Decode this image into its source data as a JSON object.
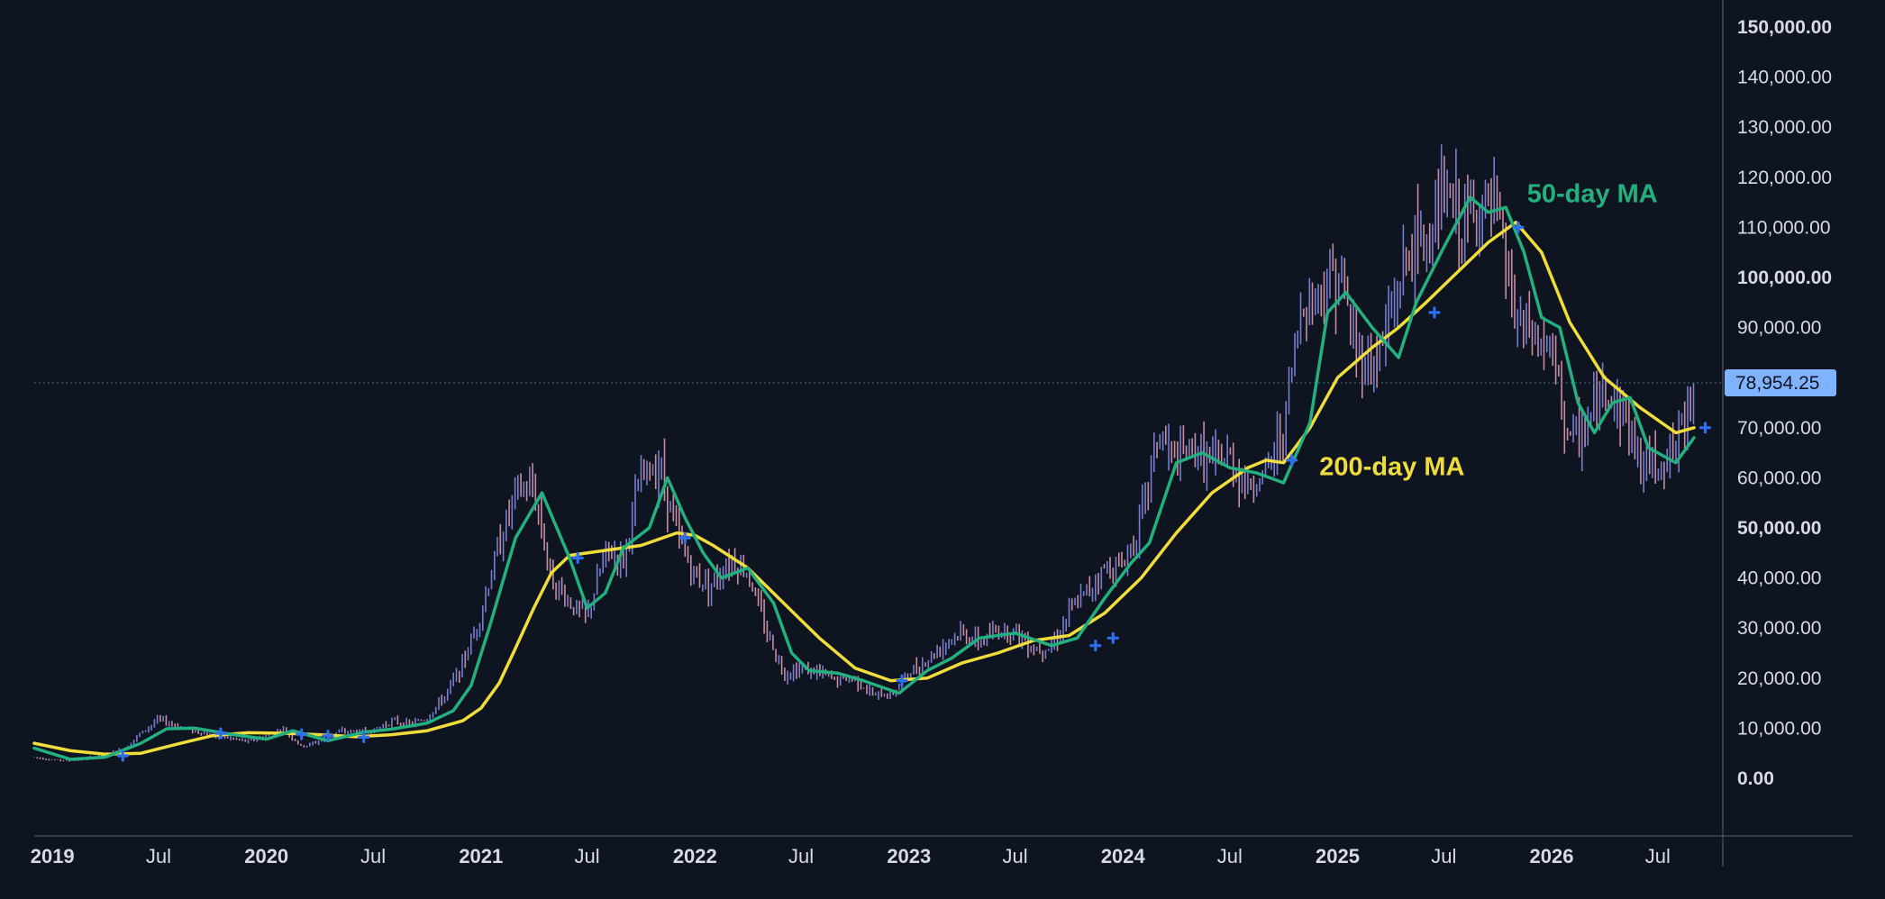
{
  "colors": {
    "background": "#0e1420",
    "up_candle": "#8a8ff0",
    "down_candle": "#e8a2b8",
    "ma50": "#22b07f",
    "ma200": "#f0dc3a",
    "cross_marker": "#2e6ff2",
    "price_badge": "#7fb3ff",
    "price_badge_text": "#0e1420",
    "axis_text": "#d8dbe3",
    "axis_line": "#444a57",
    "current_line": "#3e5b6e"
  },
  "chart_data": {
    "type": "line",
    "subject": "price",
    "y_axis": {
      "position": "right",
      "ylim": [
        0,
        150000
      ],
      "tick_values": [
        0,
        10000,
        20000,
        30000,
        40000,
        50000,
        60000,
        70000,
        80000,
        90000,
        100000,
        110000,
        120000,
        130000,
        140000,
        150000
      ],
      "tick_labels": [
        "0.00",
        "10,000.00",
        "20,000.00",
        "30,000.00",
        "40,000.00",
        "50,000.00",
        "60,000.00",
        "70,000.00",
        "80,000.00",
        "90,000.00",
        "100,000.00",
        "110,000.00",
        "120,000.00",
        "130,000.00",
        "140,000.00",
        "150,000.00"
      ],
      "bold_ticks": [
        "0.00",
        "50,000.00",
        "100,000.00",
        "150,000.00"
      ]
    },
    "x_axis": {
      "xlim": [
        "2018-12-01",
        "2026-10-20"
      ],
      "ticks": [
        {
          "date": "2019-01-01",
          "label": "2019",
          "bold": true
        },
        {
          "date": "2019-07-01",
          "label": "Jul",
          "bold": false
        },
        {
          "date": "2020-01-01",
          "label": "2020",
          "bold": true
        },
        {
          "date": "2020-07-01",
          "label": "Jul",
          "bold": false
        },
        {
          "date": "2021-01-01",
          "label": "2021",
          "bold": true
        },
        {
          "date": "2021-07-01",
          "label": "Jul",
          "bold": false
        },
        {
          "date": "2022-01-01",
          "label": "2022",
          "bold": true
        },
        {
          "date": "2022-07-01",
          "label": "Jul",
          "bold": false
        },
        {
          "date": "2023-01-01",
          "label": "2023",
          "bold": true
        },
        {
          "date": "2023-07-01",
          "label": "Jul",
          "bold": false
        },
        {
          "date": "2024-01-01",
          "label": "2024",
          "bold": true
        },
        {
          "date": "2024-07-01",
          "label": "Jul",
          "bold": false
        },
        {
          "date": "2025-01-01",
          "label": "2025",
          "bold": true
        },
        {
          "date": "2025-07-01",
          "label": "Jul",
          "bold": false
        },
        {
          "date": "2026-01-01",
          "label": "2026",
          "bold": true
        },
        {
          "date": "2026-07-01",
          "label": "Jul",
          "bold": false
        }
      ]
    },
    "current_price": {
      "value": 78954.25,
      "label": "78,954.25"
    },
    "grid": false,
    "legend": "none",
    "series": [
      {
        "kind": "price_bars",
        "points": [
          [
            "2018-12-01",
            4200
          ],
          [
            "2019-01-01",
            3700
          ],
          [
            "2019-02-01",
            3500
          ],
          [
            "2019-03-01",
            3900
          ],
          [
            "2019-04-01",
            4800
          ],
          [
            "2019-05-01",
            5800
          ],
          [
            "2019-06-01",
            9000
          ],
          [
            "2019-07-01",
            11800
          ],
          [
            "2019-08-01",
            10500
          ],
          [
            "2019-09-01",
            9500
          ],
          [
            "2019-10-01",
            8500
          ],
          [
            "2019-11-01",
            8000
          ],
          [
            "2019-12-01",
            7300
          ],
          [
            "2020-01-01",
            8500
          ],
          [
            "2020-02-01",
            9800
          ],
          [
            "2020-03-01",
            6200
          ],
          [
            "2020-04-01",
            7500
          ],
          [
            "2020-05-01",
            9200
          ],
          [
            "2020-06-01",
            9400
          ],
          [
            "2020-07-01",
            9500
          ],
          [
            "2020-08-01",
            11500
          ],
          [
            "2020-09-01",
            10700
          ],
          [
            "2020-10-01",
            12000
          ],
          [
            "2020-11-01",
            16500
          ],
          [
            "2020-12-01",
            23000
          ],
          [
            "2021-01-01",
            33000
          ],
          [
            "2021-02-01",
            47000
          ],
          [
            "2021-03-01",
            57000
          ],
          [
            "2021-04-01",
            58000
          ],
          [
            "2021-05-01",
            40000
          ],
          [
            "2021-06-01",
            35000
          ],
          [
            "2021-07-01",
            32000
          ],
          [
            "2021-08-01",
            45000
          ],
          [
            "2021-09-01",
            44000
          ],
          [
            "2021-10-01",
            60000
          ],
          [
            "2021-11-01",
            63000
          ],
          [
            "2021-12-01",
            49000
          ],
          [
            "2022-01-01",
            40000
          ],
          [
            "2022-02-01",
            39000
          ],
          [
            "2022-03-01",
            44000
          ],
          [
            "2022-04-01",
            41000
          ],
          [
            "2022-05-01",
            30000
          ],
          [
            "2022-06-01",
            21000
          ],
          [
            "2022-07-01",
            22000
          ],
          [
            "2022-08-01",
            21000
          ],
          [
            "2022-09-01",
            19500
          ],
          [
            "2022-10-01",
            20000
          ],
          [
            "2022-11-01",
            16500
          ],
          [
            "2022-12-01",
            16800
          ],
          [
            "2023-01-01",
            21000
          ],
          [
            "2023-02-01",
            23500
          ],
          [
            "2023-03-01",
            27000
          ],
          [
            "2023-04-01",
            29000
          ],
          [
            "2023-05-01",
            27000
          ],
          [
            "2023-06-01",
            29500
          ],
          [
            "2023-07-01",
            29500
          ],
          [
            "2023-08-01",
            26000
          ],
          [
            "2023-09-01",
            26500
          ],
          [
            "2023-10-01",
            33000
          ],
          [
            "2023-11-01",
            37500
          ],
          [
            "2023-12-01",
            42000
          ],
          [
            "2024-01-01",
            42500
          ],
          [
            "2024-02-01",
            52000
          ],
          [
            "2024-03-01",
            69000
          ],
          [
            "2024-04-01",
            63000
          ],
          [
            "2024-05-01",
            66000
          ],
          [
            "2024-06-01",
            63000
          ],
          [
            "2024-07-01",
            64000
          ],
          [
            "2024-08-01",
            58000
          ],
          [
            "2024-09-01",
            61000
          ],
          [
            "2024-10-01",
            70000
          ],
          [
            "2024-11-01",
            95000
          ],
          [
            "2024-12-01",
            97000
          ],
          [
            "2025-01-01",
            102000
          ],
          [
            "2025-02-01",
            86000
          ],
          [
            "2025-03-01",
            82000
          ],
          [
            "2025-04-01",
            92000
          ],
          [
            "2025-05-01",
            105000
          ],
          [
            "2025-06-01",
            107000
          ],
          [
            "2025-07-01",
            117000
          ],
          [
            "2025-08-01",
            110000
          ],
          [
            "2025-09-01",
            114000
          ],
          [
            "2025-10-01",
            112000
          ],
          [
            "2025-11-01",
            91000
          ],
          [
            "2025-12-01",
            88000
          ],
          [
            "2026-01-01",
            85000
          ],
          [
            "2026-02-01",
            67000
          ],
          [
            "2026-03-01",
            70000
          ],
          [
            "2026-04-01",
            78000
          ],
          [
            "2026-05-01",
            74000
          ],
          [
            "2026-06-01",
            63000
          ],
          [
            "2026-07-01",
            63000
          ],
          [
            "2026-08-01",
            66000
          ],
          [
            "2026-09-01",
            79000
          ]
        ]
      },
      {
        "name": "50-day MA",
        "kind": "line",
        "label_anchor": [
          "2025-11-20",
          115000
        ],
        "points": [
          [
            "2018-12-01",
            6000
          ],
          [
            "2019-02-01",
            3800
          ],
          [
            "2019-04-01",
            4200
          ],
          [
            "2019-06-01",
            7000
          ],
          [
            "2019-07-15",
            9900
          ],
          [
            "2019-09-01",
            10000
          ],
          [
            "2019-11-01",
            8800
          ],
          [
            "2020-01-01",
            7800
          ],
          [
            "2020-02-15",
            9500
          ],
          [
            "2020-04-15",
            7500
          ],
          [
            "2020-06-15",
            9200
          ],
          [
            "2020-08-01",
            9800
          ],
          [
            "2020-10-01",
            11000
          ],
          [
            "2020-11-15",
            13500
          ],
          [
            "2020-12-15",
            18500
          ],
          [
            "2021-01-15",
            30000
          ],
          [
            "2021-03-01",
            48000
          ],
          [
            "2021-04-15",
            57000
          ],
          [
            "2021-06-01",
            44000
          ],
          [
            "2021-07-01",
            34000
          ],
          [
            "2021-08-01",
            37000
          ],
          [
            "2021-09-01",
            46000
          ],
          [
            "2021-10-15",
            50000
          ],
          [
            "2021-11-15",
            60000
          ],
          [
            "2021-12-15",
            52000
          ],
          [
            "2022-01-15",
            45000
          ],
          [
            "2022-02-15",
            40000
          ],
          [
            "2022-04-01",
            42000
          ],
          [
            "2022-05-15",
            35000
          ],
          [
            "2022-06-15",
            25000
          ],
          [
            "2022-07-15",
            21500
          ],
          [
            "2022-09-01",
            21000
          ],
          [
            "2022-10-15",
            19500
          ],
          [
            "2022-12-15",
            17000
          ],
          [
            "2023-02-01",
            21500
          ],
          [
            "2023-03-15",
            24000
          ],
          [
            "2023-05-01",
            28000
          ],
          [
            "2023-07-01",
            29000
          ],
          [
            "2023-09-01",
            26500
          ],
          [
            "2023-10-15",
            28000
          ],
          [
            "2023-12-01",
            36000
          ],
          [
            "2024-01-15",
            43000
          ],
          [
            "2024-02-15",
            47000
          ],
          [
            "2024-04-01",
            63000
          ],
          [
            "2024-05-15",
            65000
          ],
          [
            "2024-07-01",
            62000
          ],
          [
            "2024-08-15",
            61000
          ],
          [
            "2024-10-01",
            59000
          ],
          [
            "2024-11-15",
            71000
          ],
          [
            "2024-12-15",
            93000
          ],
          [
            "2025-01-15",
            97000
          ],
          [
            "2025-03-01",
            90000
          ],
          [
            "2025-04-15",
            84000
          ],
          [
            "2025-05-15",
            95000
          ],
          [
            "2025-07-01",
            106000
          ],
          [
            "2025-08-15",
            116000
          ],
          [
            "2025-09-15",
            113000
          ],
          [
            "2025-10-15",
            114000
          ],
          [
            "2025-11-15",
            105000
          ],
          [
            "2025-12-15",
            92000
          ],
          [
            "2026-01-15",
            90000
          ],
          [
            "2026-02-15",
            75000
          ],
          [
            "2026-03-15",
            69000
          ],
          [
            "2026-04-15",
            75000
          ],
          [
            "2026-05-15",
            76000
          ],
          [
            "2026-06-15",
            66000
          ],
          [
            "2026-08-01",
            63000
          ],
          [
            "2026-09-01",
            68000
          ]
        ]
      },
      {
        "name": "200-day MA",
        "kind": "line",
        "label_anchor": [
          "2024-12-01",
          60500
        ],
        "points": [
          [
            "2018-12-01",
            7000
          ],
          [
            "2019-02-01",
            5500
          ],
          [
            "2019-04-01",
            4800
          ],
          [
            "2019-06-01",
            5000
          ],
          [
            "2019-08-01",
            6800
          ],
          [
            "2019-10-01",
            8500
          ],
          [
            "2019-12-01",
            9100
          ],
          [
            "2020-02-01",
            9000
          ],
          [
            "2020-04-01",
            8700
          ],
          [
            "2020-06-01",
            8300
          ],
          [
            "2020-08-01",
            8700
          ],
          [
            "2020-10-01",
            9500
          ],
          [
            "2020-12-01",
            11500
          ],
          [
            "2021-01-01",
            14000
          ],
          [
            "2021-02-01",
            19000
          ],
          [
            "2021-03-01",
            26000
          ],
          [
            "2021-04-01",
            34000
          ],
          [
            "2021-05-01",
            41000
          ],
          [
            "2021-06-01",
            44500
          ],
          [
            "2021-08-01",
            45500
          ],
          [
            "2021-10-01",
            46500
          ],
          [
            "2021-12-01",
            49000
          ],
          [
            "2022-01-01",
            48500
          ],
          [
            "2022-02-01",
            46500
          ],
          [
            "2022-04-01",
            42000
          ],
          [
            "2022-06-01",
            35000
          ],
          [
            "2022-08-01",
            28000
          ],
          [
            "2022-10-01",
            22000
          ],
          [
            "2022-12-01",
            19500
          ],
          [
            "2023-02-01",
            20000
          ],
          [
            "2023-04-01",
            23000
          ],
          [
            "2023-06-01",
            25000
          ],
          [
            "2023-08-01",
            27500
          ],
          [
            "2023-10-01",
            28500
          ],
          [
            "2023-12-01",
            33000
          ],
          [
            "2024-02-01",
            40000
          ],
          [
            "2024-04-01",
            49000
          ],
          [
            "2024-06-01",
            57000
          ],
          [
            "2024-08-01",
            62000
          ],
          [
            "2024-09-01",
            63500
          ],
          [
            "2024-10-01",
            63000
          ],
          [
            "2024-11-15",
            70000
          ],
          [
            "2025-01-01",
            80000
          ],
          [
            "2025-03-01",
            86000
          ],
          [
            "2025-04-15",
            90000
          ],
          [
            "2025-06-01",
            95000
          ],
          [
            "2025-07-15",
            100000
          ],
          [
            "2025-09-15",
            107000
          ],
          [
            "2025-11-01",
            111000
          ],
          [
            "2025-12-15",
            105000
          ],
          [
            "2026-02-01",
            91000
          ],
          [
            "2026-04-01",
            80000
          ],
          [
            "2026-06-01",
            74000
          ],
          [
            "2026-08-01",
            69000
          ],
          [
            "2026-09-01",
            70000
          ]
        ]
      }
    ],
    "cross_markers": [
      [
        "2019-05-01",
        4500
      ],
      [
        "2019-10-15",
        9000
      ],
      [
        "2020-03-01",
        8800
      ],
      [
        "2020-04-15",
        8500
      ],
      [
        "2020-06-15",
        8200
      ],
      [
        "2021-06-15",
        44000
      ],
      [
        "2021-12-15",
        48000
      ],
      [
        "2022-12-20",
        19500
      ],
      [
        "2023-11-15",
        26500
      ],
      [
        "2023-12-15",
        28000
      ],
      [
        "2024-10-15",
        63500
      ],
      [
        "2025-06-15",
        93000
      ],
      [
        "2025-11-05",
        110000
      ],
      [
        "2026-09-20",
        70000
      ]
    ]
  }
}
